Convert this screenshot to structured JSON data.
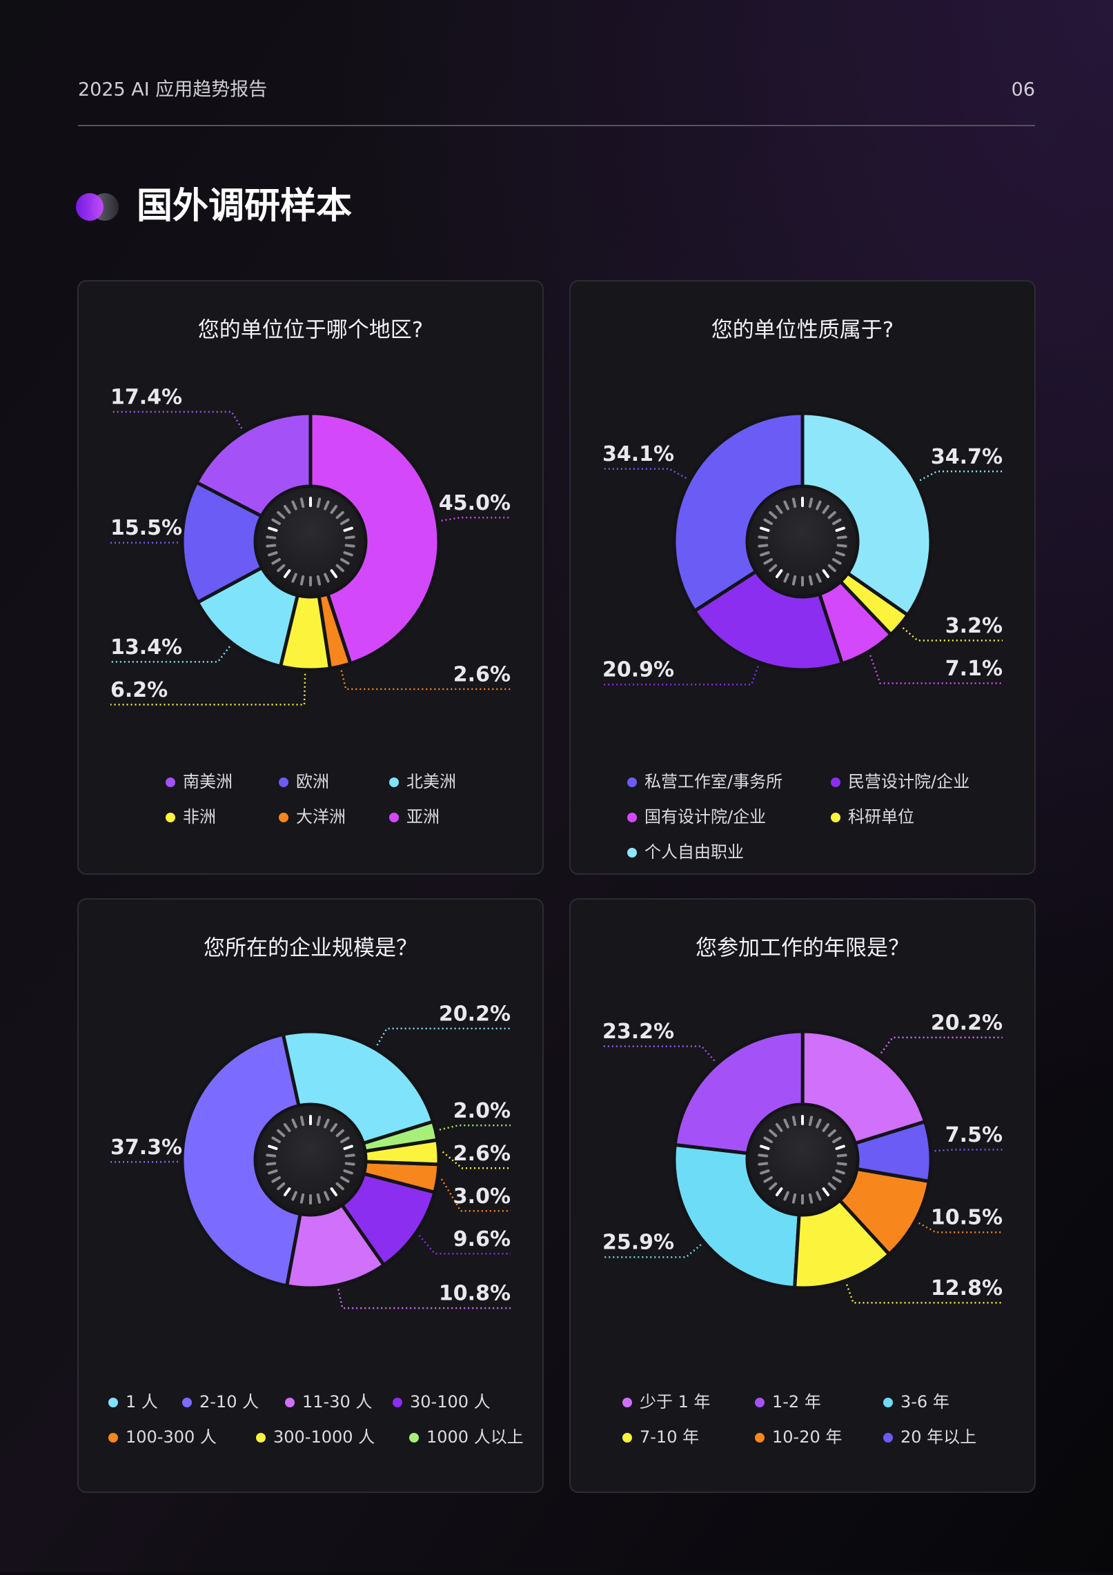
{
  "header": {
    "title": "2025 AI 应用趋势报告",
    "page": "06"
  },
  "section_title": "国外调研样本",
  "chart_data": [
    {
      "type": "pie",
      "title": "您的单位位于哪个地区?",
      "donut": true,
      "counterclock": true,
      "startangle": 90,
      "categories": [
        "南美洲",
        "欧洲",
        "北美洲",
        "非洲",
        "大洋洲",
        "亚洲"
      ],
      "values": [
        17.4,
        15.5,
        13.4,
        6.2,
        2.6,
        45.0
      ],
      "value_labels": [
        "17.4%",
        "15.5%",
        "13.4%",
        "6.2%",
        "2.6%",
        "45.0%"
      ],
      "colors": [
        "#a452f8",
        "#6b5cf6",
        "#7fe3fb",
        "#fbf33c",
        "#f7861c",
        "#d448fb"
      ]
    },
    {
      "type": "pie",
      "title": "您的单位性质属于?",
      "donut": true,
      "counterclock": true,
      "startangle": 90,
      "categories": [
        "私营工作室/事务所",
        "民营设计院/企业",
        "国有设计院/企业",
        "科研单位",
        "个人自由职业"
      ],
      "values": [
        34.1,
        20.9,
        7.1,
        3.2,
        34.7
      ],
      "value_labels": [
        "34.1%",
        "20.9%",
        "7.1%",
        "3.2%",
        "34.7%"
      ],
      "colors": [
        "#6b5cf6",
        "#8b2ef0",
        "#d448fb",
        "#fbf33c",
        "#8ee6fb"
      ]
    },
    {
      "type": "pie",
      "title": "您所在的企业规模是？",
      "donut": true,
      "counterclock": true,
      "startangle": 17.28,
      "categories": [
        "1 人",
        "2-10 人",
        "11-30 人",
        "30-100 人",
        "100-300 人",
        "300-1000 人",
        "1000 人以上"
      ],
      "values": [
        20.2,
        37.3,
        10.8,
        9.6,
        3.0,
        2.6,
        2.0
      ],
      "value_labels": [
        "20.2%",
        "37.3%",
        "10.8%",
        "9.6%",
        "3.0%",
        "2.6%",
        "2.0%"
      ],
      "colors": [
        "#7fe3fb",
        "#7b6cff",
        "#d070fb",
        "#8b2ef0",
        "#f7861c",
        "#fbf33c",
        "#a6f07a"
      ]
    },
    {
      "type": "pie",
      "title": "您参加工作的年限是？",
      "donut": true,
      "counterclock": true,
      "startangle": 17.28,
      "categories": [
        "少于 1 年",
        "1-2 年",
        "3-6 年",
        "7-10 年",
        "10-20 年",
        "20 年以上"
      ],
      "values": [
        20.2,
        23.2,
        25.9,
        12.8,
        10.5,
        7.5
      ],
      "value_labels": [
        "20.2%",
        "23.2%",
        "25.9%",
        "12.8%",
        "10.5%",
        "7.5%"
      ],
      "colors": [
        "#d070fb",
        "#a452f8",
        "#6ddcf7",
        "#fbf33c",
        "#f7861c",
        "#6b5cf6"
      ]
    }
  ]
}
